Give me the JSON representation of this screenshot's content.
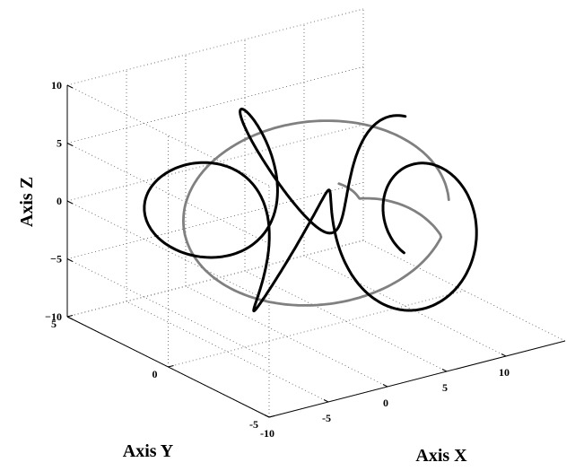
{
  "chart_data": {
    "type": "line3d",
    "xlabel": "Axis X",
    "ylabel": "Axis Y",
    "zlabel": "Axis Z",
    "xlim": [
      -10,
      15
    ],
    "ylim": [
      -5,
      5
    ],
    "zlim": [
      -10,
      10
    ],
    "x_ticks": [
      -10,
      -5,
      0,
      5,
      10
    ],
    "y_ticks": [
      -5,
      0,
      5
    ],
    "z_ticks": [
      -10,
      -5,
      0,
      5,
      10
    ],
    "grid": true,
    "series": [
      {
        "color": "#808080",
        "description_source": "gray curve: large ellipse with inward spiral end",
        "curve": {
          "kind": "ellipse",
          "cx": 2.5,
          "cy": 0,
          "cz": 0,
          "rx": 9.5,
          "ry": 3.5,
          "rz": 4.5
        }
      },
      {
        "color": "#000000",
        "curve": {
          "kind": "helix-loop",
          "big_radius": 8,
          "small_radius": 3.5,
          "loops": 5
        }
      }
    ]
  }
}
